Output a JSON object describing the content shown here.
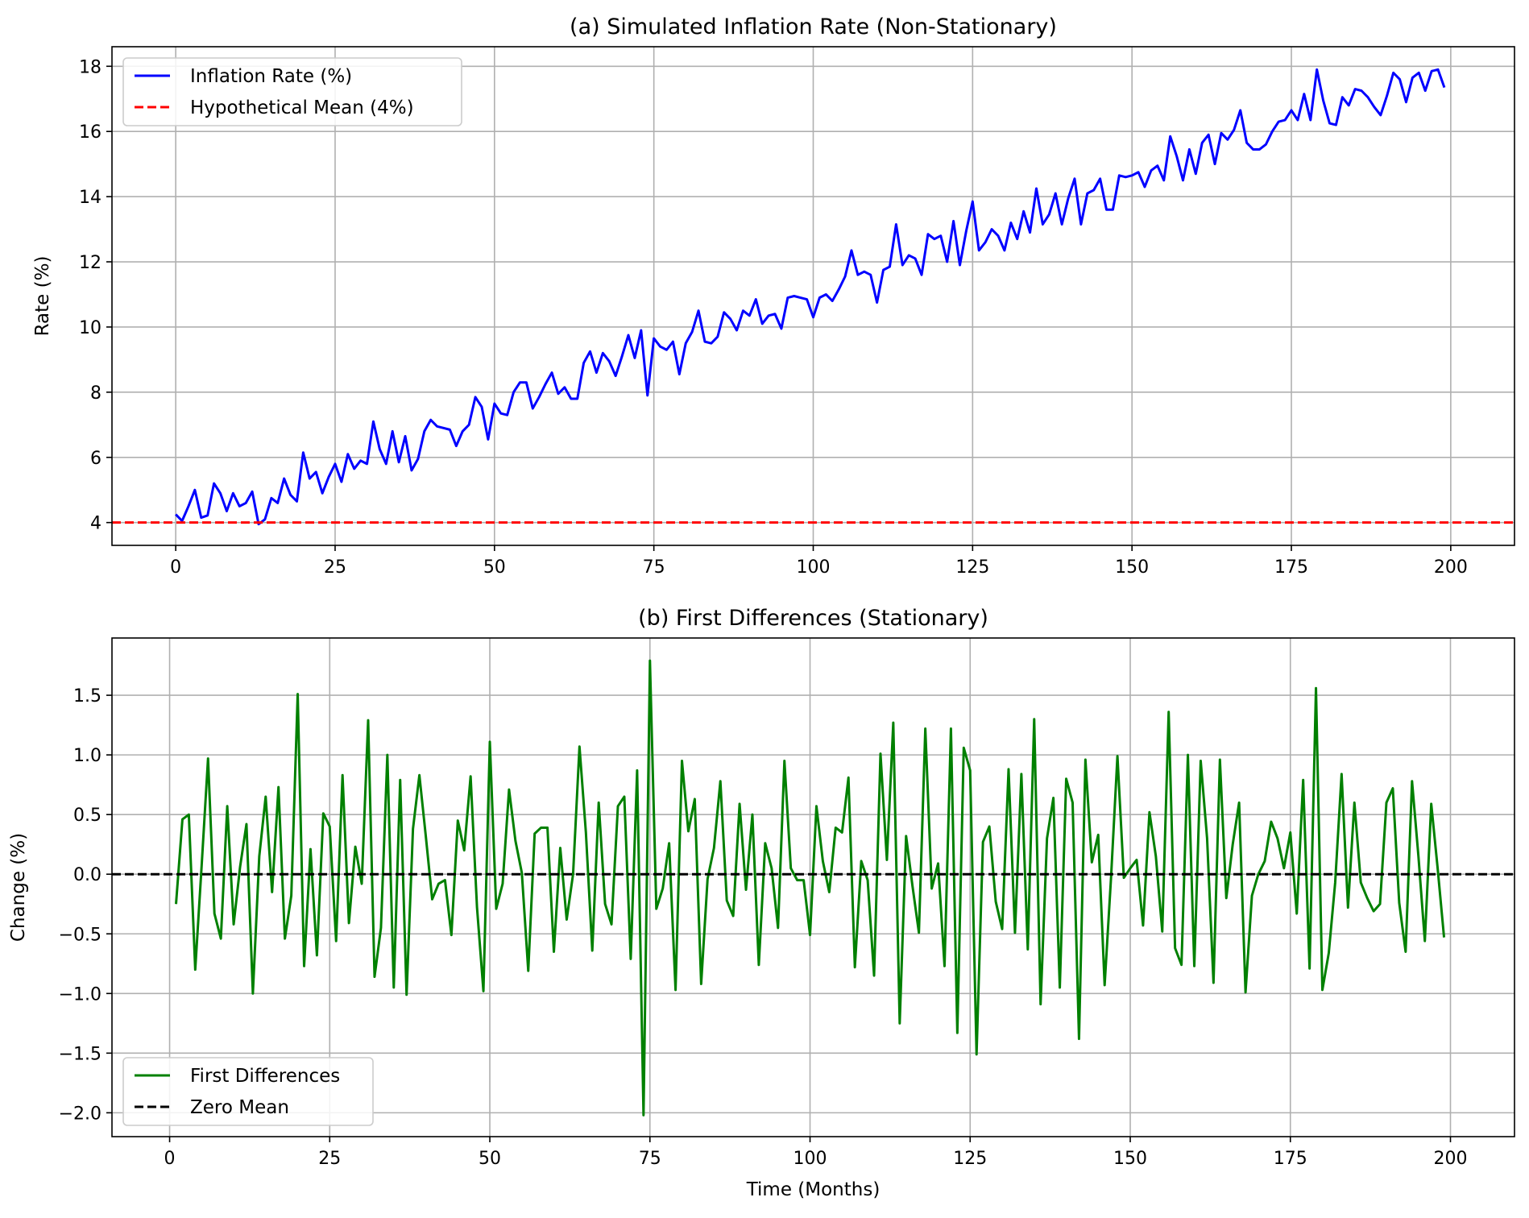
{
  "chart_data": [
    {
      "type": "line",
      "title": "(a) Simulated Inflation Rate (Non-Stationary)",
      "xlabel": "",
      "ylabel": "Rate (%)",
      "xlim": [
        -10,
        210
      ],
      "ylim": [
        3.3,
        18.6
      ],
      "xticks": [
        0,
        25,
        50,
        75,
        100,
        125,
        150,
        175,
        200
      ],
      "yticks": [
        4,
        6,
        8,
        10,
        12,
        14,
        16,
        18
      ],
      "xtick_labels": [
        "0",
        "25",
        "50",
        "75",
        "100",
        "125",
        "150",
        "175",
        "200"
      ],
      "ytick_labels": [
        "4",
        "6",
        "8",
        "10",
        "12",
        "14",
        "16",
        "18"
      ],
      "grid": true,
      "legend": "top-left",
      "series": [
        {
          "name": "Inflation Rate (%)",
          "color": "#0000ff",
          "style": "solid",
          "x_start": 0,
          "x_step": 1,
          "values": [
            4.25,
            4.05,
            4.5,
            5.0,
            4.15,
            4.22,
            5.2,
            4.9,
            4.35,
            4.9,
            4.5,
            4.6,
            4.95,
            3.95,
            4.1,
            4.75,
            4.6,
            5.35,
            4.85,
            4.65,
            6.15,
            5.35,
            5.55,
            4.9,
            5.4,
            5.8,
            5.25,
            6.1,
            5.65,
            5.9,
            5.8,
            7.1,
            6.25,
            5.8,
            6.8,
            5.85,
            6.65,
            5.6,
            5.95,
            6.8,
            7.15,
            6.95,
            6.9,
            6.85,
            6.35,
            6.8,
            7.0,
            7.85,
            7.55,
            6.55,
            7.65,
            7.35,
            7.3,
            8.0,
            8.3,
            8.3,
            7.5,
            7.85,
            8.25,
            8.6,
            7.95,
            8.15,
            7.8,
            7.8,
            8.9,
            9.25,
            8.6,
            9.2,
            8.95,
            8.5,
            9.1,
            9.75,
            9.05,
            9.9,
            7.9,
            9.65,
            9.4,
            9.3,
            9.55,
            8.55,
            9.5,
            9.85,
            10.5,
            9.55,
            9.5,
            9.7,
            10.45,
            10.25,
            9.9,
            10.5,
            10.35,
            10.85,
            10.1,
            10.35,
            10.4,
            9.95,
            10.9,
            10.95,
            10.9,
            10.85,
            10.3,
            10.9,
            11.0,
            10.8,
            11.15,
            11.55,
            12.35,
            11.6,
            11.7,
            11.6,
            10.75,
            11.75,
            11.85,
            13.15,
            11.9,
            12.2,
            12.1,
            11.6,
            12.85,
            12.7,
            12.8,
            12.0,
            13.25,
            11.9,
            12.95,
            13.85,
            12.35,
            12.6,
            13.0,
            12.8,
            12.35,
            13.2,
            12.7,
            13.55,
            12.9,
            14.25,
            13.15,
            13.45,
            14.1,
            13.15,
            13.95,
            14.55,
            13.15,
            14.1,
            14.2,
            14.55,
            13.6,
            13.6,
            14.65,
            14.6,
            14.65,
            14.75,
            14.3,
            14.8,
            14.95,
            14.5,
            15.85,
            15.25,
            14.5,
            15.45,
            14.7,
            15.65,
            15.9,
            15.0,
            15.95,
            15.75,
            16.05,
            16.65,
            15.65,
            15.45,
            15.45,
            15.6,
            16.0,
            16.3,
            16.35,
            16.65,
            16.35,
            17.15,
            16.35,
            17.9,
            16.95,
            16.25,
            16.2,
            17.05,
            16.8,
            17.3,
            17.25,
            17.05,
            16.75,
            16.5,
            17.1,
            17.8,
            17.6,
            16.9,
            17.65,
            17.8,
            17.25,
            17.85,
            17.9,
            17.35
          ]
        },
        {
          "name": "Hypothetical Mean (4%)",
          "color": "#ff0000",
          "style": "dashed",
          "horizontal_line": 4
        }
      ]
    },
    {
      "type": "line",
      "title": "(b) First Differences (Stationary)",
      "xlabel": "Time (Months)",
      "ylabel": "Change (%)",
      "xlim": [
        -9,
        210
      ],
      "ylim": [
        -2.2,
        1.98
      ],
      "xticks": [
        0,
        25,
        50,
        75,
        100,
        125,
        150,
        175,
        200
      ],
      "yticks": [
        -2.0,
        -1.5,
        -1.0,
        -0.5,
        0.0,
        0.5,
        1.0,
        1.5
      ],
      "xtick_labels": [
        "0",
        "25",
        "50",
        "75",
        "100",
        "125",
        "150",
        "175",
        "200"
      ],
      "ytick_labels": [
        "−2.0",
        "−1.5",
        "−1.0",
        "−0.5",
        "0.0",
        "0.5",
        "1.0",
        "1.5"
      ],
      "grid": true,
      "legend": "bottom-left",
      "series": [
        {
          "name": "First Differences",
          "color": "#008000",
          "style": "solid",
          "x_start": 1,
          "x_step": 1,
          "values": [
            -0.25,
            0.46,
            0.5,
            -0.8,
            0.07,
            0.97,
            -0.33,
            -0.54,
            0.57,
            -0.42,
            0.06,
            0.42,
            -1.0,
            0.15,
            0.65,
            -0.15,
            0.73,
            -0.54,
            -0.18,
            1.51,
            -0.77,
            0.21,
            -0.68,
            0.51,
            0.4,
            -0.56,
            0.83,
            -0.41,
            0.23,
            -0.08,
            1.29,
            -0.86,
            -0.45,
            1.0,
            -0.95,
            0.79,
            -1.01,
            0.38,
            0.83,
            0.32,
            -0.21,
            -0.08,
            -0.05,
            -0.51,
            0.45,
            0.2,
            0.82,
            -0.28,
            -0.98,
            1.11,
            -0.29,
            -0.08,
            0.71,
            0.28,
            0.01,
            -0.81,
            0.34,
            0.39,
            0.39,
            -0.65,
            0.22,
            -0.38,
            0.0,
            1.07,
            0.35,
            -0.64,
            0.6,
            -0.25,
            -0.42,
            0.57,
            0.65,
            -0.71,
            0.87,
            -2.02,
            1.79,
            -0.29,
            -0.12,
            0.26,
            -0.97,
            0.95,
            0.36,
            0.63,
            -0.92,
            -0.04,
            0.22,
            0.78,
            -0.22,
            -0.35,
            0.59,
            -0.13,
            0.5,
            -0.76,
            0.26,
            0.05,
            -0.45,
            0.95,
            0.05,
            -0.05,
            -0.05,
            -0.51,
            0.57,
            0.11,
            -0.15,
            0.39,
            0.35,
            0.81,
            -0.78,
            0.11,
            -0.05,
            -0.85,
            1.01,
            0.12,
            1.27,
            -1.25,
            0.32,
            -0.1,
            -0.49,
            1.22,
            -0.12,
            0.09,
            -0.77,
            1.22,
            -1.33,
            1.06,
            0.87,
            -1.51,
            0.27,
            0.4,
            -0.23,
            -0.46,
            0.88,
            -0.49,
            0.84,
            -0.63,
            1.3,
            -1.09,
            0.3,
            0.64,
            -0.95,
            0.8,
            0.6,
            -1.38,
            0.96,
            0.1,
            0.33,
            -0.93,
            -0.03,
            0.99,
            -0.03,
            0.05,
            0.12,
            -0.43,
            0.52,
            0.15,
            -0.48,
            1.36,
            -0.62,
            -0.76,
            1.0,
            -0.77,
            0.95,
            0.3,
            -0.91,
            0.96,
            -0.2,
            0.25,
            0.6,
            -0.99,
            -0.18,
            0.0,
            0.11,
            0.44,
            0.3,
            0.05,
            0.35,
            -0.33,
            0.79,
            -0.79,
            1.56,
            -0.97,
            -0.66,
            -0.07,
            0.84,
            -0.28,
            0.6,
            -0.07,
            -0.2,
            -0.31,
            -0.25,
            0.6,
            0.72,
            -0.24,
            -0.65,
            0.78,
            0.15,
            -0.56,
            0.59,
            0.05,
            -0.53
          ]
        },
        {
          "name": "Zero Mean",
          "color": "#000000",
          "style": "dashed",
          "horizontal_line": 0
        }
      ]
    }
  ]
}
